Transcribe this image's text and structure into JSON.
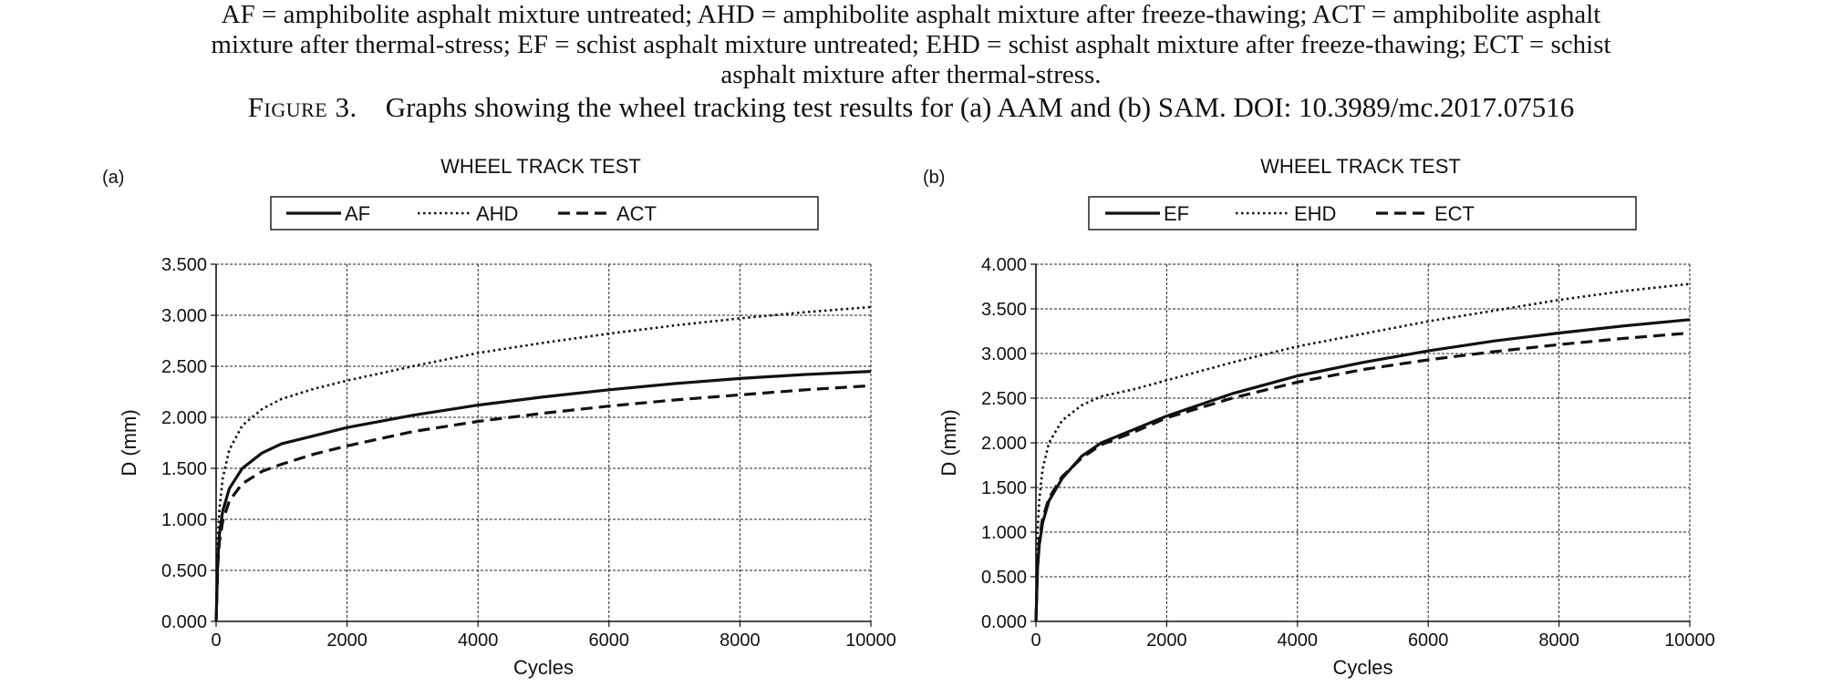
{
  "caption": {
    "line1": "AF = amphibolite asphalt mixture untreated; AHD = amphibolite asphalt mixture after freeze-thawing; ACT = amphibolite asphalt",
    "line2": "mixture after thermal-stress; EF = schist asphalt mixture untreated; EHD = schist asphalt mixture after freeze-thawing; ECT = schist",
    "line3": "asphalt mixture after thermal-stress.",
    "figure_label": "Figure 3.",
    "figure_text": "Graphs showing the wheel tracking test results for (a) AAM and (b) SAM. DOI: 10.3989/mc.2017.07516"
  },
  "chart_data": [
    {
      "type": "line",
      "panel": "(a)",
      "title": "WHEEL TRACK TEST",
      "xlabel": "Cycles",
      "ylabel": "D (mm)",
      "xlim": [
        0,
        10000
      ],
      "ylim": [
        0,
        3.5
      ],
      "xticks": [
        "0",
        "2000",
        "4000",
        "6000",
        "8000",
        "10000"
      ],
      "yticks": [
        "0.000",
        "0.500",
        "1.000",
        "1.500",
        "2.000",
        "2.500",
        "3.000",
        "3.500"
      ],
      "grid": true,
      "legend_position": "top",
      "series": [
        {
          "name": "AF",
          "style": "solid",
          "x": [
            0,
            25,
            50,
            100,
            200,
            400,
            700,
            1000,
            1500,
            2000,
            3000,
            4000,
            5000,
            6000,
            7000,
            8000,
            9000,
            10000
          ],
          "y": [
            0,
            0.6,
            0.85,
            1.08,
            1.3,
            1.5,
            1.65,
            1.74,
            1.82,
            1.9,
            2.02,
            2.12,
            2.2,
            2.27,
            2.33,
            2.38,
            2.42,
            2.45
          ]
        },
        {
          "name": "AHD",
          "style": "dotted",
          "x": [
            0,
            25,
            50,
            100,
            200,
            400,
            700,
            1000,
            1500,
            2000,
            3000,
            4000,
            5000,
            6000,
            7000,
            8000,
            9000,
            10000
          ],
          "y": [
            0,
            0.8,
            1.1,
            1.4,
            1.68,
            1.92,
            2.08,
            2.18,
            2.28,
            2.36,
            2.5,
            2.63,
            2.73,
            2.82,
            2.9,
            2.97,
            3.03,
            3.08
          ]
        },
        {
          "name": "ACT",
          "style": "dashed",
          "x": [
            0,
            25,
            50,
            100,
            200,
            400,
            700,
            1000,
            1500,
            2000,
            3000,
            4000,
            5000,
            6000,
            7000,
            8000,
            9000,
            10000
          ],
          "y": [
            0,
            0.55,
            0.78,
            0.98,
            1.18,
            1.35,
            1.47,
            1.54,
            1.64,
            1.72,
            1.86,
            1.96,
            2.04,
            2.11,
            2.17,
            2.22,
            2.27,
            2.31
          ]
        }
      ]
    },
    {
      "type": "line",
      "panel": "(b)",
      "title": "WHEEL TRACK TEST",
      "xlabel": "Cycles",
      "ylabel": "D (mm)",
      "xlim": [
        0,
        10000
      ],
      "ylim": [
        0,
        4
      ],
      "xticks": [
        "0",
        "2000",
        "4000",
        "6000",
        "8000",
        "10000"
      ],
      "yticks": [
        "0.000",
        "0.500",
        "1.000",
        "1.500",
        "2.000",
        "2.500",
        "3.000",
        "3.500",
        "4.000"
      ],
      "grid": true,
      "legend_position": "top",
      "series": [
        {
          "name": "EF",
          "style": "solid",
          "x": [
            0,
            25,
            50,
            100,
            200,
            400,
            700,
            1000,
            1500,
            2000,
            3000,
            4000,
            5000,
            6000,
            7000,
            8000,
            9000,
            10000
          ],
          "y": [
            0,
            0.6,
            0.85,
            1.1,
            1.35,
            1.6,
            1.85,
            2.0,
            2.15,
            2.3,
            2.55,
            2.75,
            2.9,
            3.03,
            3.14,
            3.23,
            3.31,
            3.38
          ]
        },
        {
          "name": "EHD",
          "style": "dotted",
          "x": [
            0,
            25,
            50,
            100,
            200,
            400,
            700,
            1000,
            1500,
            2000,
            3000,
            4000,
            5000,
            6000,
            7000,
            8000,
            9000,
            10000
          ],
          "y": [
            0,
            1.0,
            1.35,
            1.7,
            2.0,
            2.25,
            2.42,
            2.52,
            2.6,
            2.7,
            2.9,
            3.08,
            3.22,
            3.36,
            3.48,
            3.6,
            3.7,
            3.78
          ]
        },
        {
          "name": "ECT",
          "style": "dashed",
          "x": [
            0,
            25,
            50,
            100,
            200,
            400,
            700,
            1000,
            1500,
            2000,
            3000,
            4000,
            5000,
            6000,
            7000,
            8000,
            9000,
            10000
          ],
          "y": [
            0,
            0.65,
            0.9,
            1.15,
            1.38,
            1.62,
            1.83,
            1.98,
            2.12,
            2.28,
            2.5,
            2.68,
            2.82,
            2.93,
            3.02,
            3.1,
            3.17,
            3.23
          ]
        }
      ]
    }
  ]
}
